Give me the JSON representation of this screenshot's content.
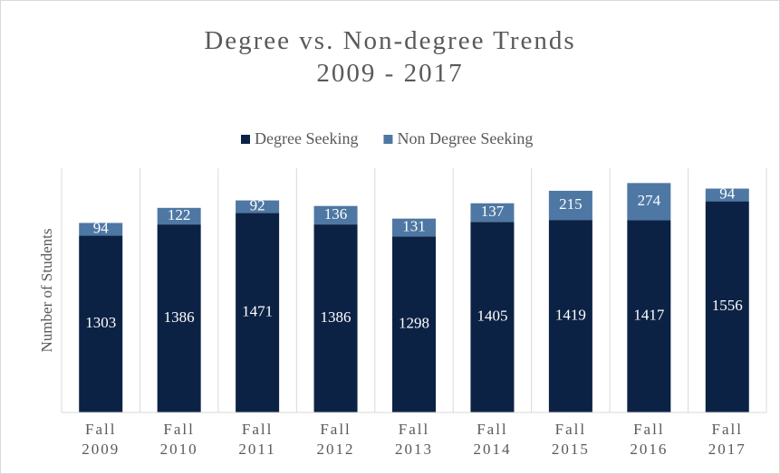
{
  "chart_data": {
    "type": "stacked_bar",
    "title": "Degree vs. Non-degree Trends\n2009 - 2017",
    "y_label": "Number of Students",
    "categories": [
      "Fall\n2009",
      "Fall\n2010",
      "Fall\n2011",
      "Fall\n2012",
      "Fall\n2013",
      "Fall\n2014",
      "Fall\n2015",
      "Fall\n2016",
      "Fall\n2017"
    ],
    "series": [
      {
        "name": "Degree Seeking",
        "color": "#0c2245",
        "values": [
          1303,
          1386,
          1471,
          1386,
          1298,
          1405,
          1419,
          1417,
          1556
        ]
      },
      {
        "name": "Non Degree Seeking",
        "color": "#4e78a3",
        "values": [
          94,
          122,
          92,
          136,
          131,
          137,
          215,
          274,
          94
        ]
      }
    ],
    "ylim": [
      0,
      1800
    ],
    "legend": "top"
  }
}
